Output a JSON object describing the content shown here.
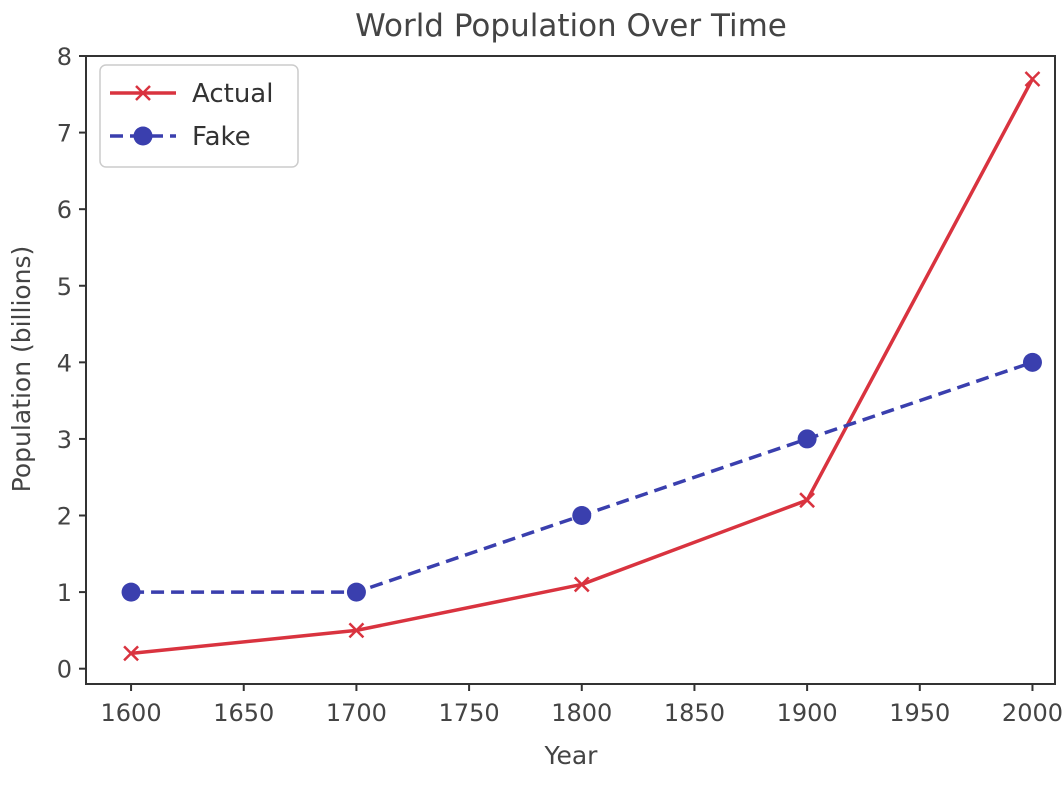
{
  "chart_data": {
    "type": "line",
    "title": "World Population Over Time",
    "xlabel": "Year",
    "ylabel": "Population (billions)",
    "xlim": [
      1580,
      2010
    ],
    "ylim": [
      -0.2,
      8.0
    ],
    "xticks": [
      1600,
      1650,
      1700,
      1750,
      1800,
      1850,
      1900,
      1950,
      2000
    ],
    "yticks": [
      0,
      1,
      2,
      3,
      4,
      5,
      6,
      7,
      8
    ],
    "grid": false,
    "legend_position": "upper-left",
    "x": [
      1600,
      1700,
      1800,
      1900,
      2000
    ],
    "series": [
      {
        "name": "Actual",
        "values": [
          0.2,
          0.5,
          1.1,
          2.2,
          7.7
        ],
        "color": "#d9333f",
        "linestyle": "solid",
        "marker": "x"
      },
      {
        "name": "Fake",
        "values": [
          1,
          1,
          2,
          3,
          4
        ],
        "color": "#3a3fae",
        "linestyle": "dashed",
        "marker": "circle"
      }
    ]
  }
}
